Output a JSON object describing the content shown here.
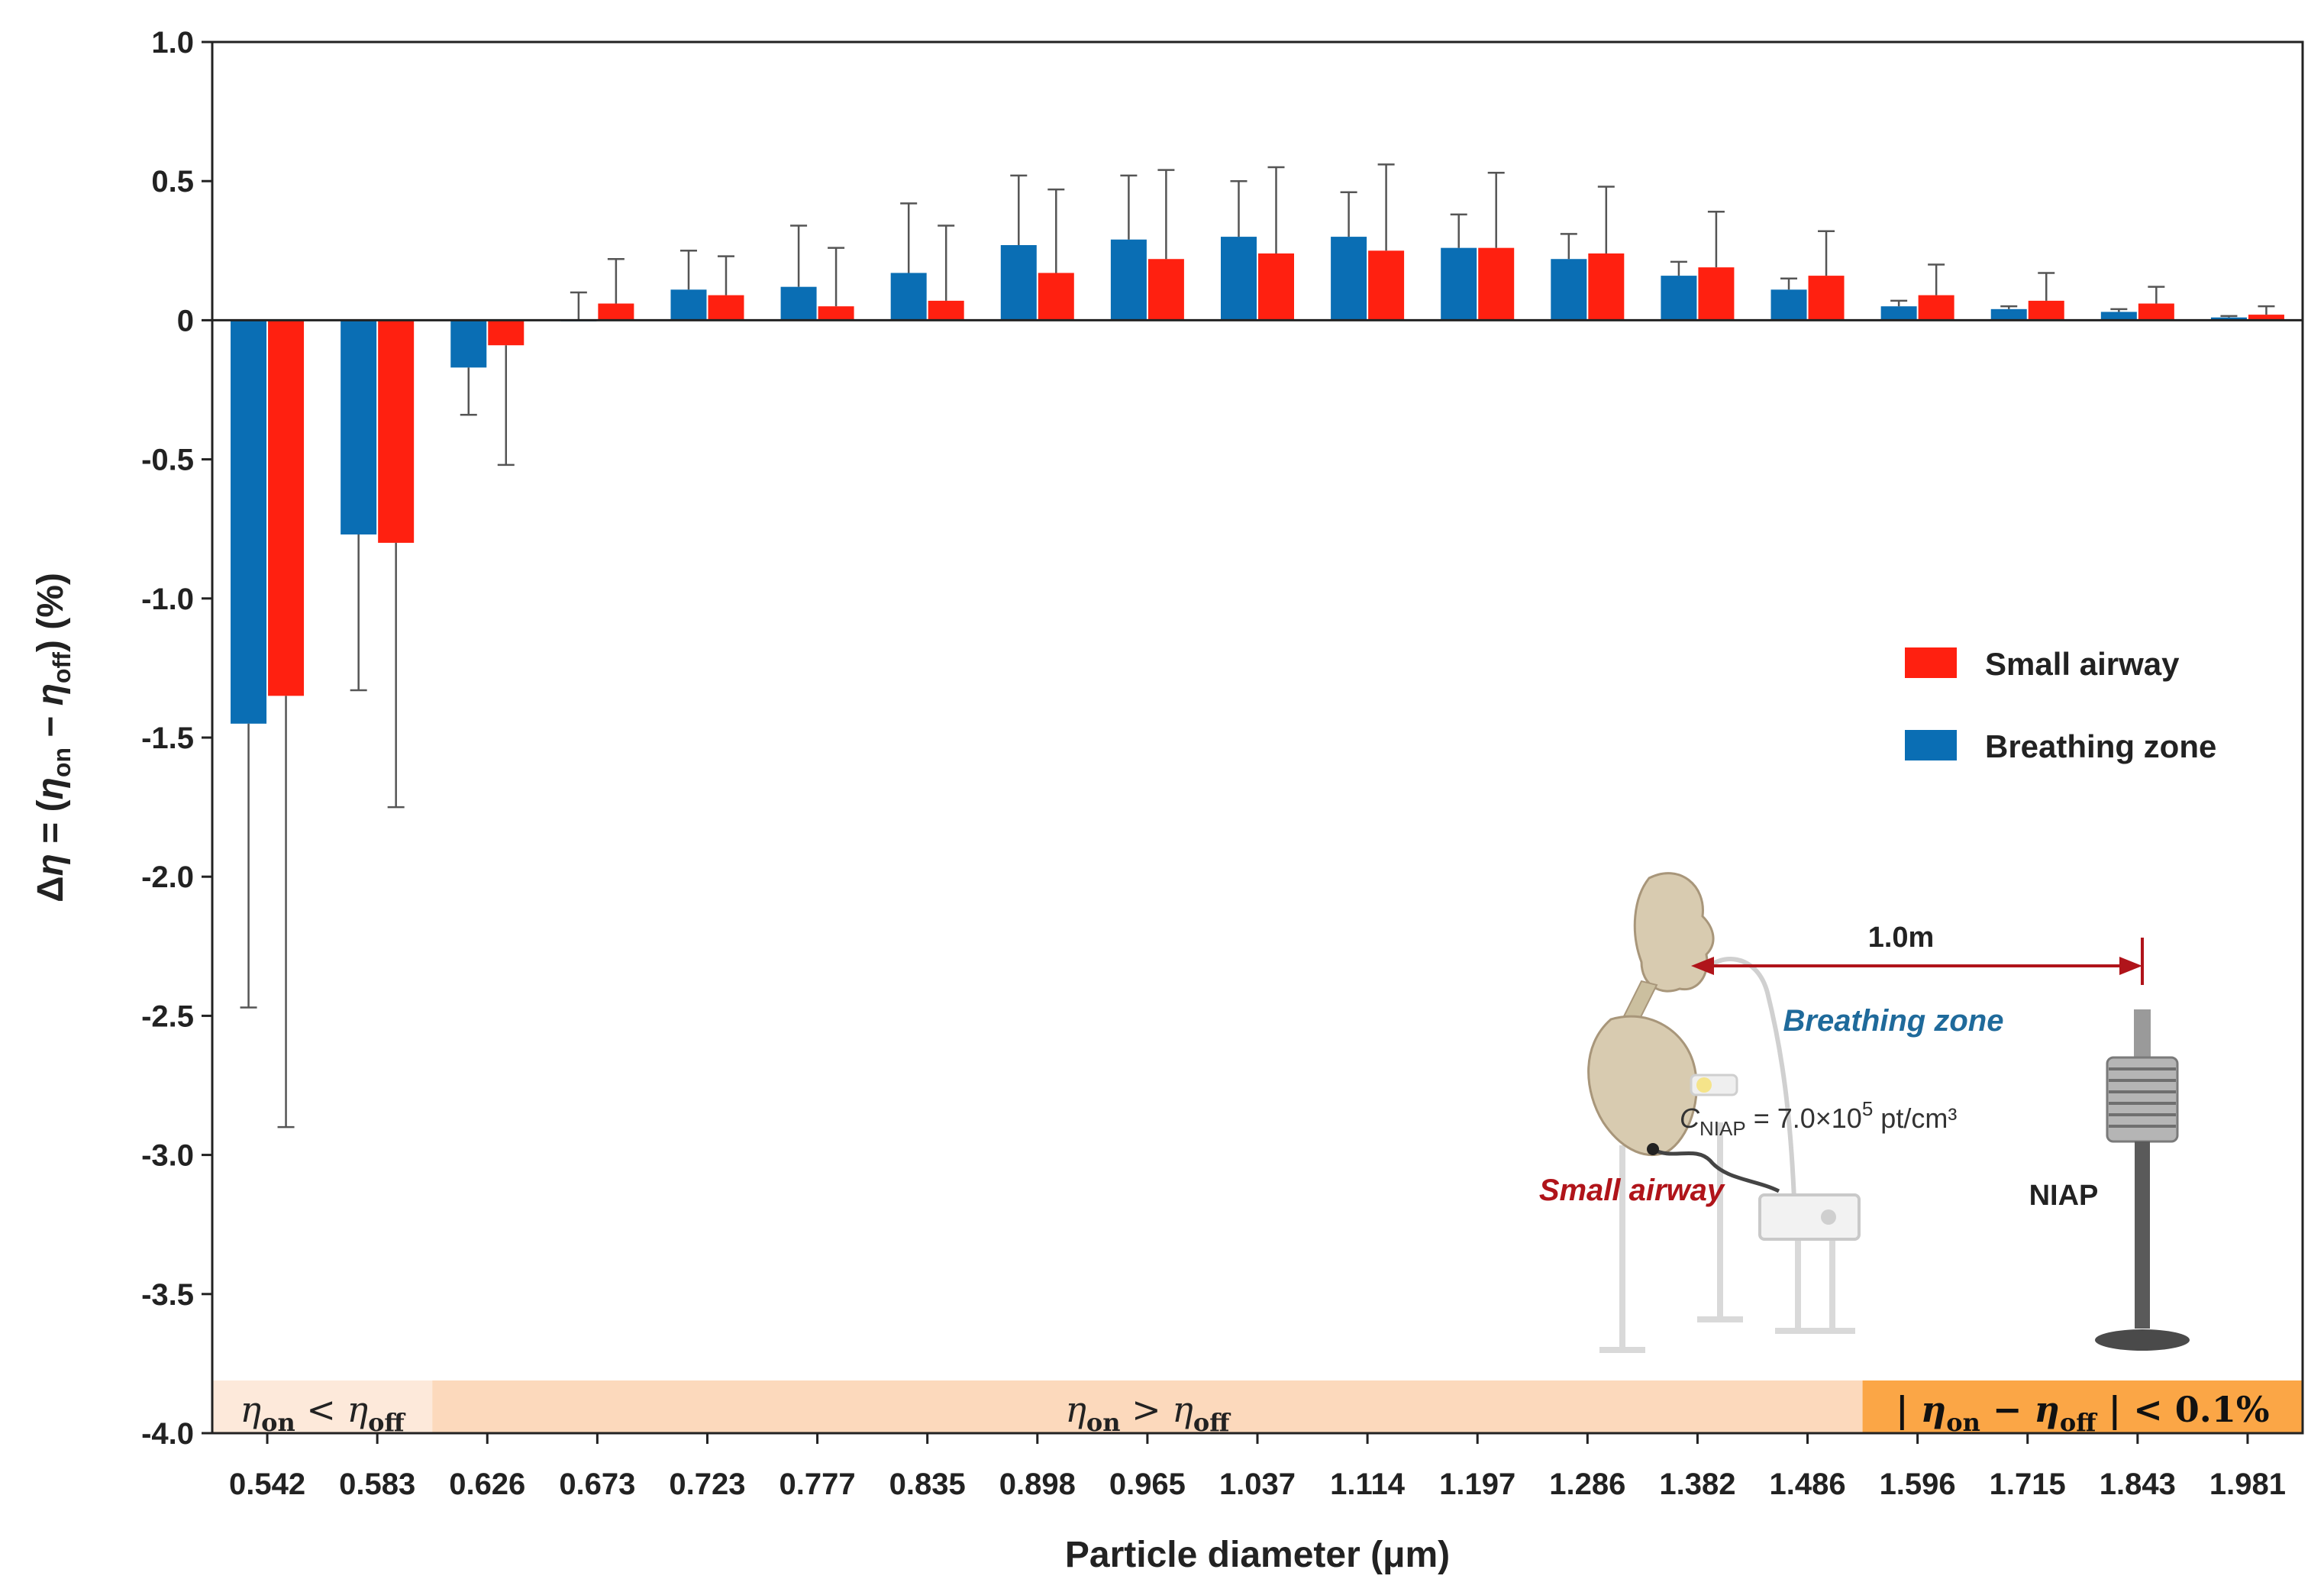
{
  "chart_data": {
    "type": "bar",
    "xlabel": "Particle diameter (μm)",
    "ylabel_parts": [
      "Δ",
      "η",
      " = (",
      "η",
      "on",
      " − ",
      "η",
      "off",
      ")  (%)"
    ],
    "ylim": [
      -4.0,
      1.0
    ],
    "yticks": [
      "1.0",
      "0.5",
      "0",
      "-0.5",
      "-1.0",
      "-1.5",
      "-2.0",
      "-2.5",
      "-3.0",
      "-3.5",
      "-4.0"
    ],
    "ytick_values": [
      1.0,
      0.5,
      0,
      -0.5,
      -1.0,
      -1.5,
      -2.0,
      -2.5,
      -3.0,
      -3.5,
      -4.0
    ],
    "categories": [
      "0.542",
      "0.583",
      "0.626",
      "0.673",
      "0.723",
      "0.777",
      "0.835",
      "0.898",
      "0.965",
      "1.037",
      "1.114",
      "1.197",
      "1.286",
      "1.382",
      "1.486",
      "1.596",
      "1.715",
      "1.843",
      "1.981"
    ],
    "highlight_categories": [
      "0.626",
      "1.596"
    ],
    "highlight_color": "#b0141a",
    "grid": false,
    "legend_position": "right",
    "series": [
      {
        "name": "Breathing zone",
        "color": "#0a6eb4",
        "values": [
          -1.45,
          -0.77,
          -0.17,
          0.0,
          0.11,
          0.12,
          0.17,
          0.27,
          0.29,
          0.3,
          0.3,
          0.26,
          0.22,
          0.16,
          0.11,
          0.05,
          0.04,
          0.03,
          0.01
        ],
        "errors": [
          1.02,
          0.56,
          0.17,
          0.1,
          0.14,
          0.22,
          0.25,
          0.25,
          0.23,
          0.2,
          0.16,
          0.12,
          0.09,
          0.05,
          0.04,
          0.02,
          0.01,
          0.01,
          0.005
        ]
      },
      {
        "name": "Small airway",
        "color": "#ff2010",
        "values": [
          -1.35,
          -0.8,
          -0.09,
          0.06,
          0.09,
          0.05,
          0.07,
          0.17,
          0.22,
          0.24,
          0.25,
          0.26,
          0.24,
          0.19,
          0.16,
          0.09,
          0.07,
          0.06,
          0.02
        ],
        "errors": [
          1.55,
          0.95,
          0.43,
          0.16,
          0.14,
          0.21,
          0.27,
          0.3,
          0.32,
          0.31,
          0.31,
          0.27,
          0.24,
          0.2,
          0.16,
          0.11,
          0.1,
          0.06,
          0.03
        ]
      }
    ],
    "legend": [
      "Small airway",
      "Breathing zone"
    ],
    "bands": [
      {
        "from": 0,
        "to": 2,
        "color": "#fde9da",
        "label_parts": [
          "η",
          "on",
          " < ",
          "η",
          "off"
        ]
      },
      {
        "from": 2,
        "to": 15,
        "color": "#fcd9bc",
        "label_parts": [
          "η",
          "on",
          " > ",
          "η",
          "off"
        ]
      },
      {
        "from": 15,
        "to": 19,
        "color": "#fba646",
        "label_parts": [
          "| ",
          "η",
          "on",
          " − ",
          "η",
          "off",
          " | < 0.1%"
        ]
      }
    ]
  },
  "inset": {
    "distance_label": "1.0m",
    "breathing_zone_label": "Breathing zone",
    "small_airway_label": "Small airway",
    "niap_label": "NIAP",
    "concentration_parts": [
      "C",
      "NIAP",
      " = 7.0×10",
      "5",
      " pt/cm³"
    ],
    "breathing_zone_color": "#1f6a9b",
    "small_airway_color": "#b0141a",
    "arrow_color": "#b0141a"
  }
}
